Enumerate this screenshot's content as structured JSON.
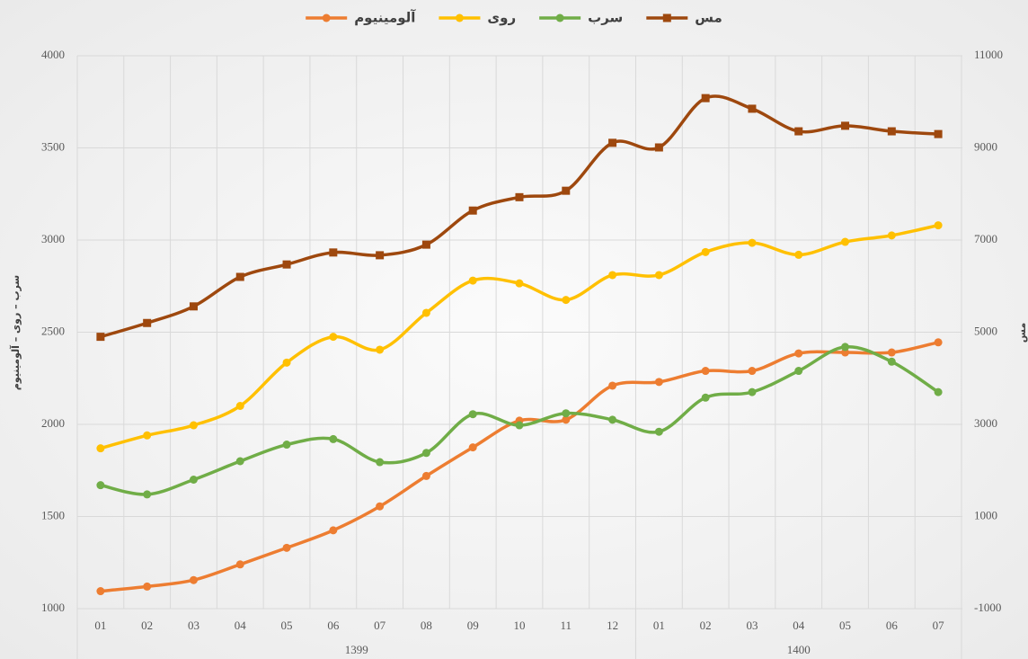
{
  "chart_data": {
    "type": "line",
    "smooth": true,
    "grid": true,
    "legend": "top",
    "y_label": "سرب – روی – آلومینیوم",
    "y2_label": "مس",
    "categories": [
      "01",
      "02",
      "03",
      "04",
      "05",
      "06",
      "07",
      "08",
      "09",
      "10",
      "11",
      "12",
      "01",
      "02",
      "03",
      "04",
      "05",
      "06",
      "07"
    ],
    "category_groups": [
      {
        "label": "1399",
        "span": 12
      },
      {
        "label": "1400",
        "span": 7
      }
    ],
    "ylim": [
      1000,
      4000
    ],
    "yticks": [
      1000,
      1500,
      2000,
      2500,
      3000,
      3500,
      4000
    ],
    "y2lim": [
      -1000,
      11000
    ],
    "y2ticks": [
      -1000,
      1000,
      3000,
      5000,
      7000,
      9000,
      11000
    ],
    "series": [
      {
        "name": "آلومینیوم",
        "color": "#ed7d31",
        "marker": "circle",
        "values": [
          1095,
          1120,
          1155,
          1240,
          1330,
          1425,
          1555,
          1720,
          1875,
          2020,
          2025,
          2210,
          2230,
          2290,
          2290,
          2385,
          2390,
          2390,
          2445
        ]
      },
      {
        "name": "روی",
        "color": "#ffc000",
        "marker": "circle",
        "values": [
          1870,
          1940,
          1995,
          2100,
          2335,
          2475,
          2405,
          2605,
          2780,
          2765,
          2675,
          2810,
          2810,
          2935,
          2985,
          2920,
          2990,
          3025,
          3080
        ]
      },
      {
        "name": "سرب",
        "color": "#70ad47",
        "marker": "circle",
        "values": [
          1670,
          1620,
          1700,
          1800,
          1890,
          1920,
          1795,
          1845,
          2055,
          1995,
          2060,
          2025,
          1960,
          2145,
          2175,
          2290,
          2420,
          2340,
          2175
        ]
      },
      {
        "name": "مس",
        "color": "#9e480e",
        "marker": "square",
        "axis": "y2",
        "values": [
          4900,
          5200,
          5560,
          6200,
          6470,
          6730,
          6670,
          6900,
          7640,
          7930,
          8070,
          9110,
          9010,
          10080,
          9850,
          9360,
          9480,
          9360,
          9300
        ]
      }
    ]
  }
}
